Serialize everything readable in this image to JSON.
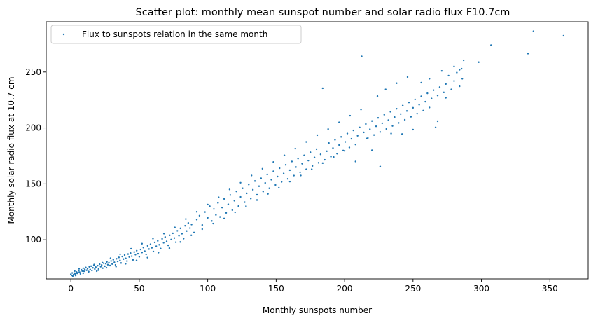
{
  "chart_data": {
    "type": "scatter",
    "title": "Scatter plot: monthly mean sunspot number and solar radio flux F10.7cm",
    "xlabel": "Monthly sunspots number",
    "ylabel": "Monthly solar radio flux at 10.7 cm",
    "xlim": [
      -18,
      378
    ],
    "ylim": [
      65,
      295
    ],
    "xticks": [
      0,
      50,
      100,
      150,
      200,
      250,
      300,
      350
    ],
    "yticks": [
      100,
      150,
      200,
      250
    ],
    "grid": false,
    "legend_position": "top-left",
    "series": [
      {
        "name": "Flux to sunspots relation in the same month",
        "color": "#1f77b4",
        "points": [
          [
            0.0,
            69.1
          ],
          [
            0.5,
            68.2
          ],
          [
            1.0,
            70.3
          ],
          [
            1.4,
            67.5
          ],
          [
            2.0,
            68.8
          ],
          [
            2.6,
            70.1
          ],
          [
            3.1,
            69.4
          ],
          [
            3.5,
            68.0
          ],
          [
            4.0,
            71.2
          ],
          [
            4.6,
            69.9
          ],
          [
            5.2,
            70.8
          ],
          [
            5.8,
            72.3
          ],
          [
            6.4,
            71.0
          ],
          [
            7.0,
            69.5
          ],
          [
            7.7,
            73.1
          ],
          [
            8.3,
            72.0
          ],
          [
            9.0,
            74.5
          ],
          [
            9.6,
            71.8
          ],
          [
            10.2,
            73.6
          ],
          [
            10.9,
            75.2
          ],
          [
            11.5,
            72.7
          ],
          [
            12.2,
            74.1
          ],
          [
            12.8,
            70.9
          ],
          [
            13.5,
            75.8
          ],
          [
            14.1,
            73.3
          ],
          [
            14.8,
            76.4
          ],
          [
            15.4,
            72.5
          ],
          [
            16.1,
            74.9
          ],
          [
            16.8,
            77.0
          ],
          [
            17.5,
            73.8
          ],
          [
            18.2,
            75.5
          ],
          [
            18.9,
            71.9
          ],
          [
            19.6,
            76.8
          ],
          [
            20.3,
            74.2
          ],
          [
            21.0,
            78.1
          ],
          [
            21.8,
            75.9
          ],
          [
            22.5,
            77.4
          ],
          [
            23.3,
            74.6
          ],
          [
            24.0,
            79.0
          ],
          [
            24.8,
            76.3
          ],
          [
            25.5,
            78.6
          ],
          [
            26.3,
            80.2
          ],
          [
            27.0,
            77.7
          ],
          [
            27.8,
            79.5
          ],
          [
            28.6,
            76.9
          ],
          [
            29.4,
            81.0
          ],
          [
            30.2,
            78.3
          ],
          [
            31.0,
            82.1
          ],
          [
            31.8,
            79.8
          ],
          [
            32.6,
            77.5
          ],
          [
            33.4,
            83.0
          ],
          [
            34.2,
            80.6
          ],
          [
            35.1,
            84.2
          ],
          [
            35.9,
            81.5
          ],
          [
            36.7,
            79.2
          ],
          [
            37.6,
            85.0
          ],
          [
            38.4,
            82.7
          ],
          [
            39.3,
            86.3
          ],
          [
            40.1,
            83.4
          ],
          [
            41.0,
            80.9
          ],
          [
            41.8,
            87.2
          ],
          [
            42.7,
            84.6
          ],
          [
            43.6,
            88.1
          ],
          [
            44.5,
            85.3
          ],
          [
            45.4,
            82.0
          ],
          [
            46.3,
            89.0
          ],
          [
            47.2,
            86.7
          ],
          [
            48.1,
            90.2
          ],
          [
            49.0,
            87.5
          ],
          [
            50.0,
            84.8
          ],
          [
            51.0,
            91.3
          ],
          [
            52.0,
            88.6
          ],
          [
            53.0,
            93.0
          ],
          [
            54.0,
            89.8
          ],
          [
            55.0,
            86.9
          ],
          [
            56.1,
            94.5
          ],
          [
            57.1,
            91.7
          ],
          [
            58.2,
            96.0
          ],
          [
            59.2,
            92.8
          ],
          [
            60.3,
            89.5
          ],
          [
            61.3,
            97.6
          ],
          [
            62.4,
            94.2
          ],
          [
            63.5,
            99.0
          ],
          [
            64.6,
            95.5
          ],
          [
            65.6,
            92.1
          ],
          [
            66.7,
            100.8
          ],
          [
            67.8,
            97.3
          ],
          [
            68.9,
            102.4
          ],
          [
            70.0,
            98.6
          ],
          [
            71.1,
            95.0
          ],
          [
            72.2,
            104.0
          ],
          [
            73.3,
            100.2
          ],
          [
            74.5,
            105.8
          ],
          [
            75.6,
            101.5
          ],
          [
            76.7,
            97.8
          ],
          [
            77.8,
            108.0
          ],
          [
            79.0,
            103.6
          ],
          [
            80.1,
            110.2
          ],
          [
            81.2,
            105.4
          ],
          [
            82.4,
            101.0
          ],
          [
            83.5,
            112.5
          ],
          [
            84.6,
            107.8
          ],
          [
            85.8,
            115.0
          ],
          [
            87.0,
            110.4
          ],
          [
            88.2,
            113.6
          ],
          [
            90.0,
            106.5
          ],
          [
            92.0,
            118.0
          ],
          [
            94.0,
            121.5
          ],
          [
            96.0,
            113.2
          ],
          [
            98.0,
            124.8
          ],
          [
            100.0,
            119.6
          ],
          [
            101.5,
            130.0
          ],
          [
            103.0,
            116.8
          ],
          [
            104.5,
            127.5
          ],
          [
            106.0,
            122.2
          ],
          [
            107.5,
            133.0
          ],
          [
            109.0,
            120.4
          ],
          [
            110.5,
            128.8
          ],
          [
            112.0,
            136.5
          ],
          [
            113.5,
            124.0
          ],
          [
            115.0,
            131.7
          ],
          [
            116.5,
            140.0
          ],
          [
            118.0,
            126.5
          ],
          [
            119.5,
            134.9
          ],
          [
            121.0,
            143.2
          ],
          [
            122.5,
            130.1
          ],
          [
            124.0,
            138.3
          ],
          [
            125.5,
            146.0
          ],
          [
            127.0,
            133.6
          ],
          [
            128.5,
            141.5
          ],
          [
            130.0,
            149.4
          ],
          [
            131.5,
            136.8
          ],
          [
            133.0,
            144.7
          ],
          [
            134.5,
            152.5
          ],
          [
            136.0,
            140.2
          ],
          [
            137.5,
            147.9
          ],
          [
            139.0,
            155.0
          ],
          [
            140.5,
            143.1
          ],
          [
            142.0,
            150.8
          ],
          [
            143.5,
            158.4
          ],
          [
            145.0,
            146.0
          ],
          [
            146.5,
            153.7
          ],
          [
            148.0,
            161.2
          ],
          [
            149.5,
            149.0
          ],
          [
            151.0,
            156.5
          ],
          [
            152.5,
            164.0
          ],
          [
            154.0,
            151.8
          ],
          [
            155.5,
            159.3
          ],
          [
            157.0,
            167.0
          ],
          [
            158.5,
            154.5
          ],
          [
            160.0,
            162.2
          ],
          [
            161.5,
            170.0
          ],
          [
            163.0,
            157.4
          ],
          [
            164.5,
            165.0
          ],
          [
            166.0,
            172.6
          ],
          [
            167.5,
            160.3
          ],
          [
            169.0,
            168.0
          ],
          [
            170.5,
            175.5
          ],
          [
            172.0,
            163.0
          ],
          [
            173.5,
            170.8
          ],
          [
            175.0,
            178.2
          ],
          [
            176.5,
            166.0
          ],
          [
            178.0,
            173.6
          ],
          [
            179.5,
            181.0
          ],
          [
            181.0,
            168.8
          ],
          [
            182.5,
            176.4
          ],
          [
            184.0,
            235.5
          ],
          [
            185.5,
            171.5
          ],
          [
            187.0,
            179.2
          ],
          [
            188.5,
            186.5
          ],
          [
            190.0,
            174.3
          ],
          [
            191.5,
            182.0
          ],
          [
            193.0,
            189.4
          ],
          [
            194.5,
            177.0
          ],
          [
            196.0,
            184.7
          ],
          [
            197.5,
            192.0
          ],
          [
            199.0,
            179.8
          ],
          [
            200.5,
            187.5
          ],
          [
            202.0,
            195.0
          ],
          [
            203.5,
            182.5
          ],
          [
            205.0,
            190.3
          ],
          [
            206.5,
            197.8
          ],
          [
            208.0,
            185.2
          ],
          [
            209.5,
            193.0
          ],
          [
            211.0,
            200.5
          ],
          [
            212.5,
            264.0
          ],
          [
            214.0,
            196.0
          ],
          [
            215.5,
            203.5
          ],
          [
            217.0,
            191.0
          ],
          [
            218.5,
            198.8
          ],
          [
            220.0,
            206.2
          ],
          [
            221.5,
            193.7
          ],
          [
            223.0,
            201.5
          ],
          [
            224.5,
            209.0
          ],
          [
            226.0,
            196.4
          ],
          [
            227.5,
            204.2
          ],
          [
            229.0,
            211.8
          ],
          [
            230.5,
            199.1
          ],
          [
            232.0,
            207.0
          ],
          [
            233.5,
            214.5
          ],
          [
            235.0,
            201.8
          ],
          [
            236.5,
            209.7
          ],
          [
            238.0,
            217.2
          ],
          [
            239.5,
            204.5
          ],
          [
            241.0,
            212.4
          ],
          [
            242.5,
            220.0
          ],
          [
            244.0,
            207.3
          ],
          [
            245.5,
            215.2
          ],
          [
            247.0,
            222.8
          ],
          [
            248.5,
            210.0
          ],
          [
            250.0,
            218.0
          ],
          [
            251.5,
            225.5
          ],
          [
            253.0,
            212.8
          ],
          [
            254.5,
            220.8
          ],
          [
            256.0,
            228.3
          ],
          [
            257.5,
            215.5
          ],
          [
            259.0,
            223.5
          ],
          [
            260.5,
            231.0
          ],
          [
            262.0,
            218.3
          ],
          [
            263.5,
            226.3
          ],
          [
            265.0,
            233.8
          ],
          [
            266.5,
            200.5
          ],
          [
            268.0,
            229.0
          ],
          [
            269.5,
            236.5
          ],
          [
            271.0,
            251.0
          ],
          [
            272.5,
            231.8
          ],
          [
            274.0,
            239.3
          ],
          [
            276.0,
            246.8
          ],
          [
            278.0,
            234.5
          ],
          [
            280.0,
            242.0
          ],
          [
            282.0,
            249.5
          ],
          [
            284.0,
            237.3
          ],
          [
            285.5,
            253.0
          ],
          [
            287.0,
            260.5
          ],
          [
            298.0,
            258.8
          ],
          [
            307.0,
            274.0
          ],
          [
            334.0,
            266.5
          ],
          [
            338.0,
            286.5
          ],
          [
            360.0,
            282.5
          ],
          [
            2.8,
            72.0
          ],
          [
            6.0,
            74.0
          ],
          [
            9.0,
            70.0
          ],
          [
            13.0,
            71.5
          ],
          [
            17.0,
            77.8
          ],
          [
            20.0,
            72.8
          ],
          [
            23.0,
            79.5
          ],
          [
            26.0,
            75.0
          ],
          [
            29.0,
            83.5
          ],
          [
            33.0,
            76.0
          ],
          [
            36.0,
            87.0
          ],
          [
            40.0,
            78.5
          ],
          [
            44.0,
            92.0
          ],
          [
            48.0,
            81.5
          ],
          [
            52.0,
            96.5
          ],
          [
            56.0,
            84.0
          ],
          [
            60.0,
            101.0
          ],
          [
            64.0,
            88.5
          ],
          [
            68.0,
            105.5
          ],
          [
            72.0,
            92.5
          ],
          [
            76.0,
            111.0
          ],
          [
            80.0,
            98.0
          ],
          [
            84.0,
            118.5
          ],
          [
            88.0,
            104.0
          ],
          [
            92.0,
            125.0
          ],
          [
            96.0,
            109.5
          ],
          [
            100.0,
            131.5
          ],
          [
            104.0,
            114.5
          ],
          [
            108.0,
            138.0
          ],
          [
            112.0,
            119.0
          ],
          [
            116.0,
            145.0
          ],
          [
            120.0,
            124.5
          ],
          [
            124.0,
            151.0
          ],
          [
            128.0,
            130.0
          ],
          [
            132.0,
            157.5
          ],
          [
            136.0,
            135.5
          ],
          [
            140.0,
            163.5
          ],
          [
            144.0,
            141.0
          ],
          [
            148.0,
            169.5
          ],
          [
            152.0,
            146.5
          ],
          [
            156.0,
            175.5
          ],
          [
            160.0,
            152.0
          ],
          [
            164.0,
            181.5
          ],
          [
            168.0,
            157.5
          ],
          [
            172.0,
            187.5
          ],
          [
            176.0,
            163.0
          ],
          [
            180.0,
            193.5
          ],
          [
            184.0,
            168.5
          ],
          [
            188.0,
            199.0
          ],
          [
            192.0,
            174.0
          ],
          [
            196.0,
            205.0
          ],
          [
            200.0,
            179.5
          ],
          [
            204.0,
            211.0
          ],
          [
            208.0,
            170.0
          ],
          [
            212.0,
            216.5
          ],
          [
            216.0,
            190.5
          ],
          [
            220.0,
            180.0
          ],
          [
            224.0,
            228.5
          ],
          [
            226.0,
            165.5
          ],
          [
            230.0,
            234.5
          ],
          [
            234.0,
            195.0
          ],
          [
            238.0,
            240.0
          ],
          [
            242.0,
            194.5
          ],
          [
            246.0,
            245.5
          ],
          [
            250.0,
            198.5
          ],
          [
            256.0,
            240.5
          ],
          [
            262.0,
            244.0
          ],
          [
            268.0,
            206.0
          ],
          [
            274.0,
            227.0
          ],
          [
            280.0,
            255.0
          ],
          [
            284.0,
            252.0
          ],
          [
            286.0,
            244.0
          ]
        ]
      }
    ]
  }
}
